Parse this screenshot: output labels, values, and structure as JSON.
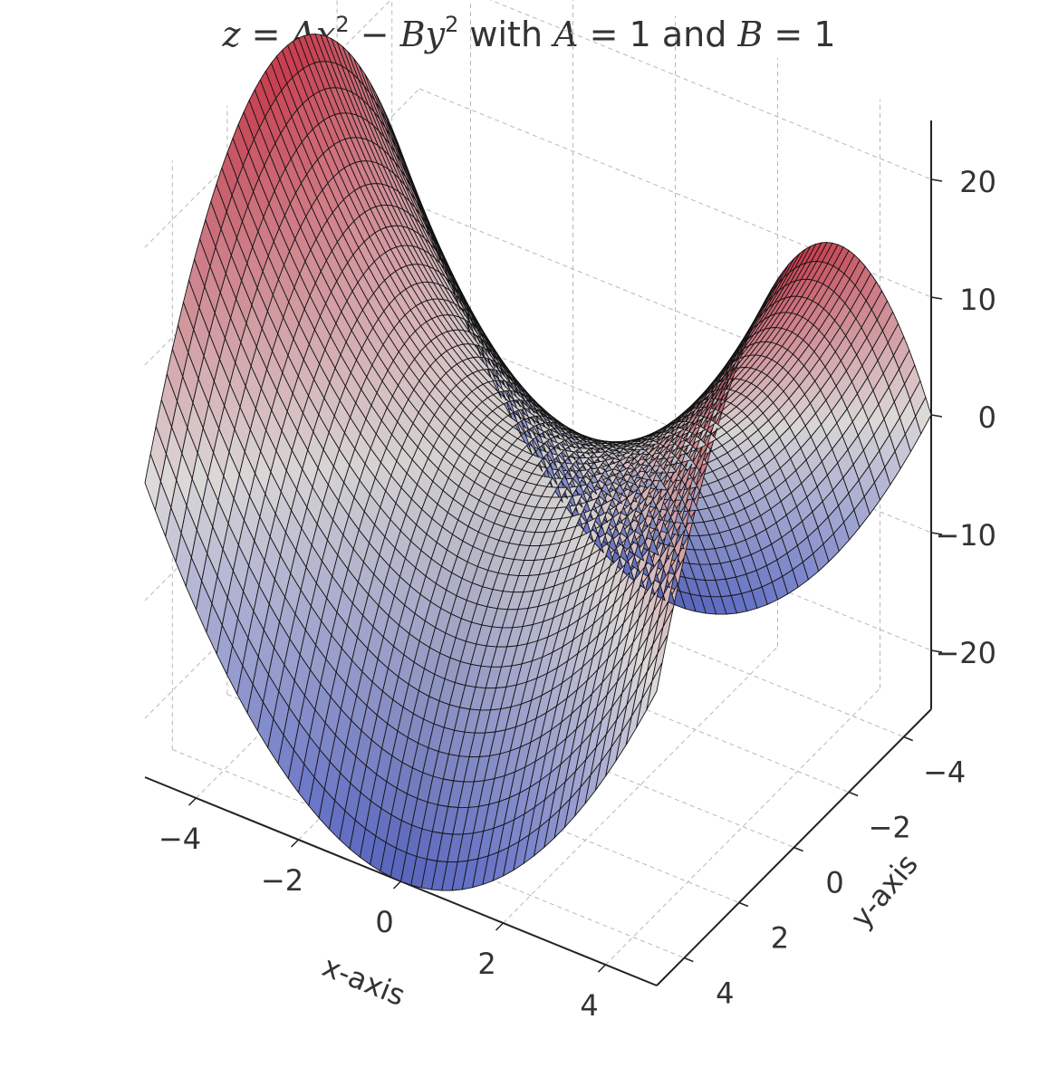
{
  "chart_data": {
    "type": "surface",
    "title": "z = Ax² − By² with A = 1 and B = 1",
    "title_parts": {
      "z": "z",
      "eq": " = ",
      "A": "A",
      "x": "x",
      "sq1": "2",
      "minus": " − ",
      "B": "B",
      "y": "y",
      "sq2": "2",
      "with": " with ",
      "A2": "A",
      "eq2": " = 1 and ",
      "B2": "B",
      "eq3": " = 1"
    },
    "function": "z = A*x^2 - B*y^2",
    "params": {
      "A": 1,
      "B": 1
    },
    "x": {
      "label": "x-axis",
      "range": [
        -5,
        5
      ],
      "ticks": [
        -4,
        -2,
        0,
        2,
        4
      ],
      "tick_labels": [
        "−4",
        "−2",
        "0",
        "2",
        "4"
      ]
    },
    "y": {
      "label": "y-axis",
      "range": [
        -5,
        5
      ],
      "ticks": [
        -4,
        -2,
        0,
        2,
        4
      ],
      "tick_labels": [
        "−4",
        "−2",
        "0",
        "2",
        "4"
      ]
    },
    "z": {
      "label": "",
      "range": [
        -25,
        25
      ],
      "ticks": [
        -20,
        -10,
        0,
        10,
        20
      ],
      "tick_labels": [
        "−20",
        "−10",
        "0",
        "10",
        "20"
      ]
    },
    "grid": true,
    "colormap": "coolwarm",
    "colors": {
      "low": "#6e7ff0",
      "mid": "#f2eeee",
      "high": "#c8384a",
      "edge": "#141414",
      "grid": "#b8b8b8",
      "axis": "#222222"
    },
    "mesh_resolution": 50
  }
}
